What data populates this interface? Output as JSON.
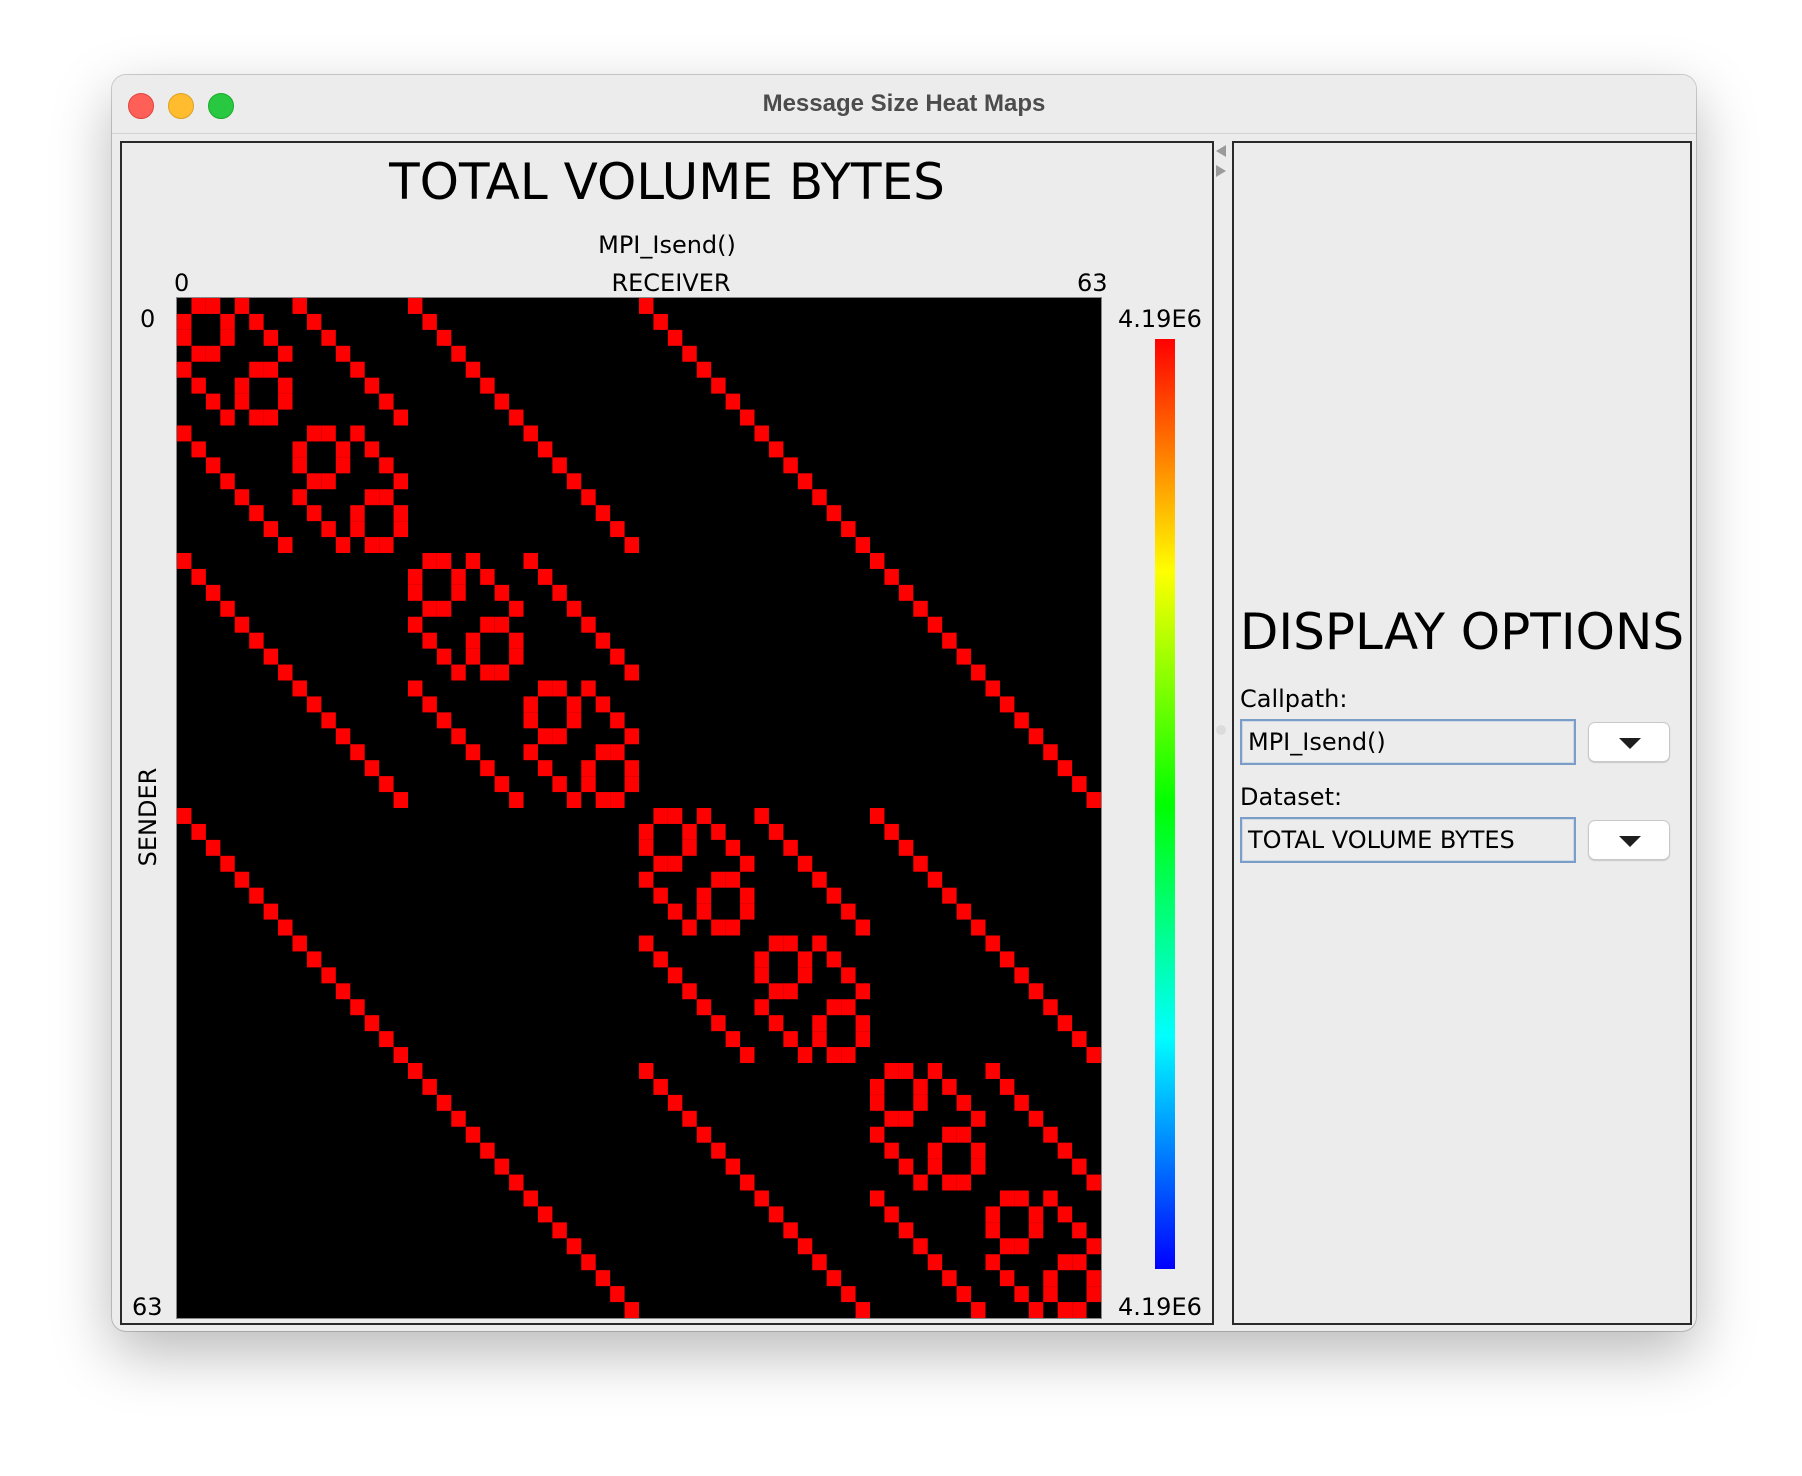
{
  "window": {
    "title": "Message Size Heat Maps"
  },
  "heatmap_panel": {
    "title": "TOTAL VOLUME BYTES",
    "subtitle": "MPI_Isend()",
    "x_axis": {
      "label": "RECEIVER",
      "min_label": "0",
      "max_label": "63"
    },
    "y_axis": {
      "label": "SENDER",
      "min_label": "0",
      "max_label": "63"
    },
    "colorbar": {
      "max_label": "4.19E6",
      "min_label": "4.19E6"
    }
  },
  "options_panel": {
    "title": "DISPLAY OPTIONS",
    "callpath_label": "Callpath:",
    "callpath_value": "MPI_Isend()",
    "dataset_label": "Dataset:",
    "dataset_value": "TOTAL VOLUME BYTES"
  },
  "chart_data": {
    "type": "heatmap",
    "title": "TOTAL VOLUME BYTES",
    "subtitle": "MPI_Isend()",
    "xlabel": "RECEIVER",
    "ylabel": "SENDER",
    "x_range": [
      0,
      63
    ],
    "y_range": [
      0,
      63
    ],
    "value_range": [
      4190000,
      4190000
    ],
    "background": "#000000",
    "cell_color": "#ff0000",
    "colorscale": [
      "#0000ff",
      "#00ffff",
      "#00ff00",
      "#ffff00",
      "#ff0000"
    ],
    "nonzero_pattern": "receiver = sender XOR k",
    "xor_offsets": [
      1,
      2,
      4,
      8,
      16,
      32
    ]
  }
}
